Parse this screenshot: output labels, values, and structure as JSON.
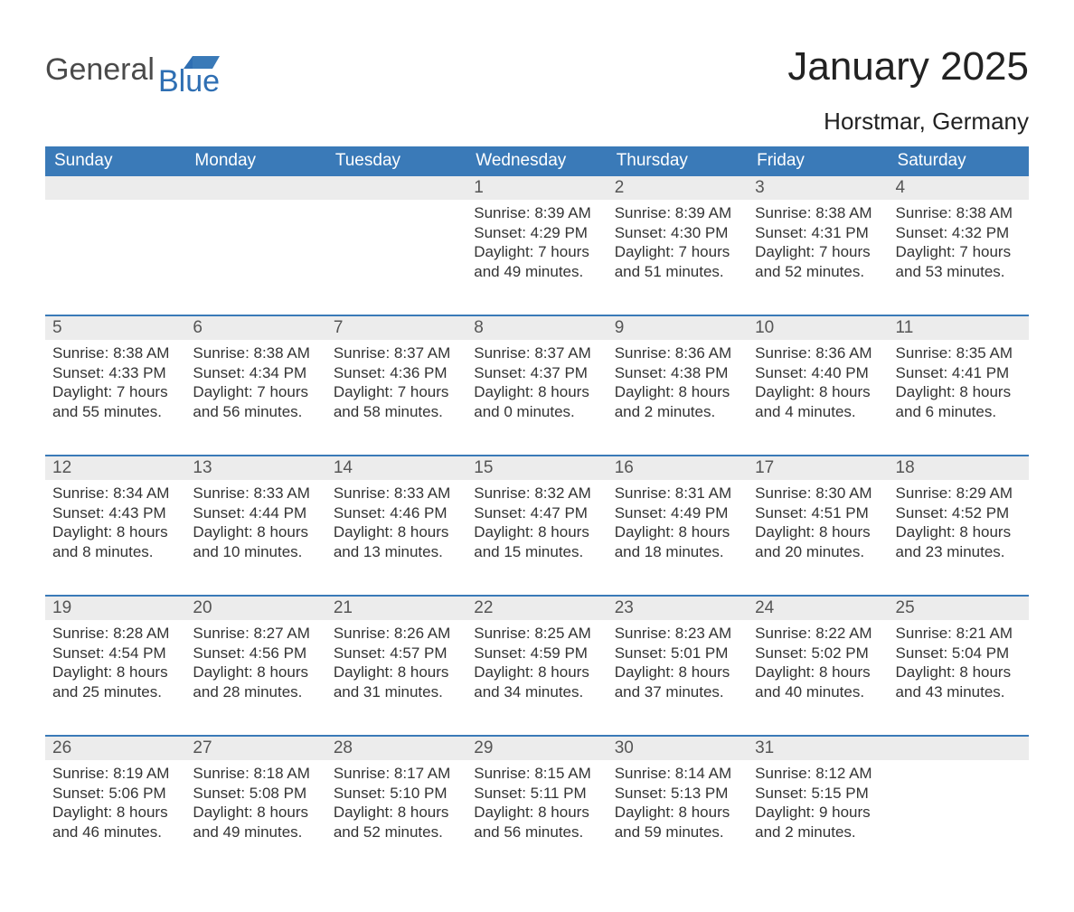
{
  "brand": {
    "text1": "General",
    "text2": "Blue",
    "color1": "#4a4a4a",
    "color2": "#2f6fb3"
  },
  "title": "January 2025",
  "location": "Horstmar, Germany",
  "colors": {
    "header_bg": "#3a7ab8",
    "header_text": "#ffffff",
    "daynum_bg": "#ececec",
    "row_border": "#3a7ab8",
    "body_text": "#333333",
    "page_bg": "#ffffff"
  },
  "typography": {
    "title_fontsize": 44,
    "location_fontsize": 26,
    "weekday_fontsize": 19,
    "daynum_fontsize": 19,
    "body_fontsize": 17
  },
  "weekdays": [
    "Sunday",
    "Monday",
    "Tuesday",
    "Wednesday",
    "Thursday",
    "Friday",
    "Saturday"
  ],
  "weeks": [
    [
      null,
      null,
      null,
      {
        "n": "1",
        "sunrise": "8:39 AM",
        "sunset": "4:29 PM",
        "daylight": "7 hours and 49 minutes."
      },
      {
        "n": "2",
        "sunrise": "8:39 AM",
        "sunset": "4:30 PM",
        "daylight": "7 hours and 51 minutes."
      },
      {
        "n": "3",
        "sunrise": "8:38 AM",
        "sunset": "4:31 PM",
        "daylight": "7 hours and 52 minutes."
      },
      {
        "n": "4",
        "sunrise": "8:38 AM",
        "sunset": "4:32 PM",
        "daylight": "7 hours and 53 minutes."
      }
    ],
    [
      {
        "n": "5",
        "sunrise": "8:38 AM",
        "sunset": "4:33 PM",
        "daylight": "7 hours and 55 minutes."
      },
      {
        "n": "6",
        "sunrise": "8:38 AM",
        "sunset": "4:34 PM",
        "daylight": "7 hours and 56 minutes."
      },
      {
        "n": "7",
        "sunrise": "8:37 AM",
        "sunset": "4:36 PM",
        "daylight": "7 hours and 58 minutes."
      },
      {
        "n": "8",
        "sunrise": "8:37 AM",
        "sunset": "4:37 PM",
        "daylight": "8 hours and 0 minutes."
      },
      {
        "n": "9",
        "sunrise": "8:36 AM",
        "sunset": "4:38 PM",
        "daylight": "8 hours and 2 minutes."
      },
      {
        "n": "10",
        "sunrise": "8:36 AM",
        "sunset": "4:40 PM",
        "daylight": "8 hours and 4 minutes."
      },
      {
        "n": "11",
        "sunrise": "8:35 AM",
        "sunset": "4:41 PM",
        "daylight": "8 hours and 6 minutes."
      }
    ],
    [
      {
        "n": "12",
        "sunrise": "8:34 AM",
        "sunset": "4:43 PM",
        "daylight": "8 hours and 8 minutes."
      },
      {
        "n": "13",
        "sunrise": "8:33 AM",
        "sunset": "4:44 PM",
        "daylight": "8 hours and 10 minutes."
      },
      {
        "n": "14",
        "sunrise": "8:33 AM",
        "sunset": "4:46 PM",
        "daylight": "8 hours and 13 minutes."
      },
      {
        "n": "15",
        "sunrise": "8:32 AM",
        "sunset": "4:47 PM",
        "daylight": "8 hours and 15 minutes."
      },
      {
        "n": "16",
        "sunrise": "8:31 AM",
        "sunset": "4:49 PM",
        "daylight": "8 hours and 18 minutes."
      },
      {
        "n": "17",
        "sunrise": "8:30 AM",
        "sunset": "4:51 PM",
        "daylight": "8 hours and 20 minutes."
      },
      {
        "n": "18",
        "sunrise": "8:29 AM",
        "sunset": "4:52 PM",
        "daylight": "8 hours and 23 minutes."
      }
    ],
    [
      {
        "n": "19",
        "sunrise": "8:28 AM",
        "sunset": "4:54 PM",
        "daylight": "8 hours and 25 minutes."
      },
      {
        "n": "20",
        "sunrise": "8:27 AM",
        "sunset": "4:56 PM",
        "daylight": "8 hours and 28 minutes."
      },
      {
        "n": "21",
        "sunrise": "8:26 AM",
        "sunset": "4:57 PM",
        "daylight": "8 hours and 31 minutes."
      },
      {
        "n": "22",
        "sunrise": "8:25 AM",
        "sunset": "4:59 PM",
        "daylight": "8 hours and 34 minutes."
      },
      {
        "n": "23",
        "sunrise": "8:23 AM",
        "sunset": "5:01 PM",
        "daylight": "8 hours and 37 minutes."
      },
      {
        "n": "24",
        "sunrise": "8:22 AM",
        "sunset": "5:02 PM",
        "daylight": "8 hours and 40 minutes."
      },
      {
        "n": "25",
        "sunrise": "8:21 AM",
        "sunset": "5:04 PM",
        "daylight": "8 hours and 43 minutes."
      }
    ],
    [
      {
        "n": "26",
        "sunrise": "8:19 AM",
        "sunset": "5:06 PM",
        "daylight": "8 hours and 46 minutes."
      },
      {
        "n": "27",
        "sunrise": "8:18 AM",
        "sunset": "5:08 PM",
        "daylight": "8 hours and 49 minutes."
      },
      {
        "n": "28",
        "sunrise": "8:17 AM",
        "sunset": "5:10 PM",
        "daylight": "8 hours and 52 minutes."
      },
      {
        "n": "29",
        "sunrise": "8:15 AM",
        "sunset": "5:11 PM",
        "daylight": "8 hours and 56 minutes."
      },
      {
        "n": "30",
        "sunrise": "8:14 AM",
        "sunset": "5:13 PM",
        "daylight": "8 hours and 59 minutes."
      },
      {
        "n": "31",
        "sunrise": "8:12 AM",
        "sunset": "5:15 PM",
        "daylight": "9 hours and 2 minutes."
      },
      null
    ]
  ],
  "labels": {
    "sunrise": "Sunrise: ",
    "sunset": "Sunset: ",
    "daylight": "Daylight: "
  }
}
